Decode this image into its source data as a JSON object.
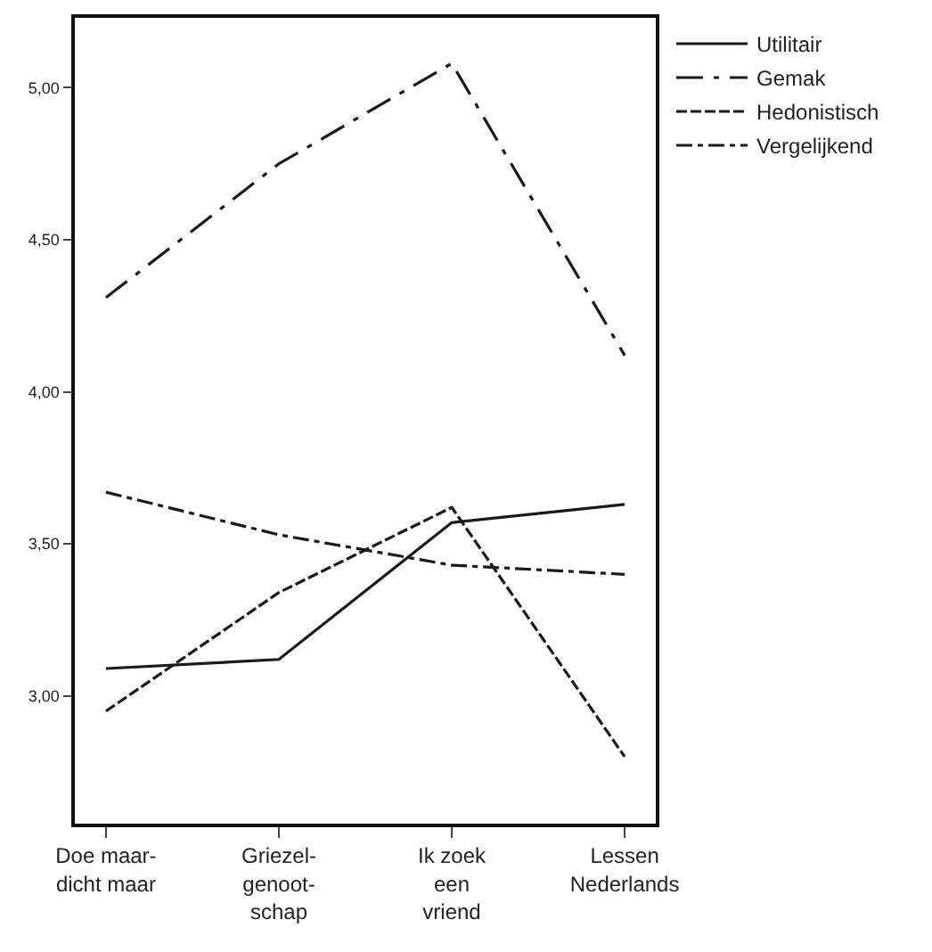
{
  "chart_data": {
    "type": "line",
    "categories": [
      "Doe maar-\ndicht maar",
      "Griezel-\ngenoot-\nschap",
      "Ik zoek\neen\nvriend",
      "Lessen\nNederlands"
    ],
    "series": [
      {
        "name": "Utilitair",
        "color": "#1a1a1a",
        "line_style": "solid",
        "values": [
          3.09,
          3.12,
          3.57,
          3.63
        ]
      },
      {
        "name": "Gemak",
        "color": "#1a1a1a",
        "line_style": "longdashdot",
        "values": [
          4.31,
          4.75,
          5.08,
          4.12
        ]
      },
      {
        "name": "Hedonistisch",
        "color": "#1a1a1a",
        "line_style": "dashed",
        "values": [
          2.95,
          3.34,
          3.62,
          2.8
        ]
      },
      {
        "name": "Vergelijkend",
        "color": "#1a1a1a",
        "line_style": "dashdot",
        "values": [
          3.67,
          3.53,
          3.43,
          3.4
        ]
      }
    ],
    "ylim": [
      2.58,
      5.23
    ],
    "yticks": [
      {
        "value": 3,
        "label": "3,00"
      },
      {
        "value": 3.5,
        "label": "3,50"
      },
      {
        "value": 4,
        "label": "4,00"
      },
      {
        "value": 4.5,
        "label": "4,50"
      },
      {
        "value": 5,
        "label": "5,00"
      }
    ],
    "legend": "top right",
    "marker": "none"
  }
}
